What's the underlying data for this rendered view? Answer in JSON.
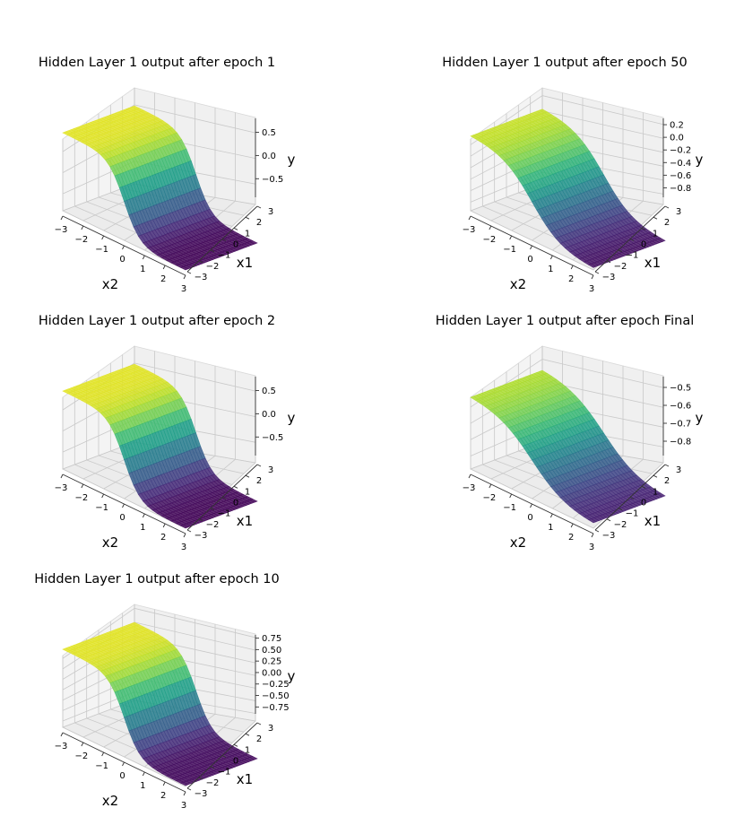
{
  "chart_data": [
    {
      "type": "surface3d",
      "title": "Hidden Layer 1 output after epoch 1",
      "xlabel": "x2",
      "ylabel": "x1",
      "zlabel": "y",
      "xlim": [
        -3,
        3
      ],
      "ylim": [
        -3,
        3
      ],
      "zlim": [
        -0.9,
        0.8
      ],
      "xticks": [
        "−3",
        "−2",
        "−1",
        "0",
        "1",
        "2",
        "3"
      ],
      "yticks": [
        "−3",
        "−2",
        "−1",
        "0",
        "1",
        "2",
        "3"
      ],
      "zticks": [
        {
          "value": 0.5,
          "label": "0.5"
        },
        {
          "value": 0.0,
          "label": "0.0"
        },
        {
          "value": -0.5,
          "label": "−0.5"
        }
      ],
      "grid": true,
      "colormap": "viridis",
      "surface": {
        "at_x_min": 0.78,
        "at_x_max": -0.9,
        "steepness": 1.3
      }
    },
    {
      "type": "surface3d",
      "title": "Hidden Layer 1 output after epoch 50",
      "xlabel": "x2",
      "ylabel": "x1",
      "zlabel": "y",
      "xlim": [
        -3,
        3
      ],
      "ylim": [
        -3,
        3
      ],
      "zlim": [
        -0.95,
        0.3
      ],
      "xticks": [
        "−3",
        "−2",
        "−1",
        "0",
        "1",
        "2",
        "3"
      ],
      "yticks": [
        "−3",
        "−2",
        "−1",
        "0",
        "1",
        "2",
        "3"
      ],
      "zticks": [
        {
          "value": 0.2,
          "label": "0.2"
        },
        {
          "value": 0.0,
          "label": "0.0"
        },
        {
          "value": -0.2,
          "label": "−0.2"
        },
        {
          "value": -0.4,
          "label": "−0.4"
        },
        {
          "value": -0.6,
          "label": "−0.6"
        },
        {
          "value": -0.8,
          "label": "−0.8"
        }
      ],
      "grid": true,
      "colormap": "viridis",
      "surface": {
        "at_x_min": 0.25,
        "at_x_max": -0.93,
        "steepness": 0.7
      }
    },
    {
      "type": "surface3d",
      "title": "Hidden Layer 1 output after epoch 2",
      "xlabel": "x2",
      "ylabel": "x1",
      "zlabel": "y",
      "xlim": [
        -3,
        3
      ],
      "ylim": [
        -3,
        3
      ],
      "zlim": [
        -0.9,
        0.8
      ],
      "xticks": [
        "−3",
        "−2",
        "−1",
        "0",
        "1",
        "2",
        "3"
      ],
      "yticks": [
        "−3",
        "−2",
        "−1",
        "0",
        "1",
        "2",
        "3"
      ],
      "zticks": [
        {
          "value": 0.5,
          "label": "0.5"
        },
        {
          "value": 0.0,
          "label": "0.0"
        },
        {
          "value": -0.5,
          "label": "−0.5"
        }
      ],
      "grid": true,
      "colormap": "viridis",
      "surface": {
        "at_x_min": 0.78,
        "at_x_max": -0.9,
        "steepness": 1.3
      }
    },
    {
      "type": "surface3d",
      "title": "Hidden Layer 1 output after epoch Final",
      "xlabel": "x2",
      "ylabel": "x1",
      "zlabel": "y",
      "xlim": [
        -3,
        3
      ],
      "ylim": [
        -3,
        3
      ],
      "zlim": [
        -0.88,
        -0.44
      ],
      "xticks": [
        "−3",
        "−2",
        "−1",
        "0",
        "1",
        "2",
        "3"
      ],
      "yticks": [
        "−3",
        "−2",
        "−1",
        "0",
        "1",
        "2",
        "3"
      ],
      "zticks": [
        {
          "value": -0.5,
          "label": "−0.5"
        },
        {
          "value": -0.6,
          "label": "−0.6"
        },
        {
          "value": -0.7,
          "label": "−0.7"
        },
        {
          "value": -0.8,
          "label": "−0.8"
        }
      ],
      "grid": true,
      "colormap": "viridis",
      "surface": {
        "at_x_min": -0.47,
        "at_x_max": -0.86,
        "steepness": 0.6
      }
    },
    {
      "type": "surface3d",
      "title": "Hidden Layer 1 output after epoch 10",
      "xlabel": "x2",
      "ylabel": "x1",
      "zlabel": "y",
      "xlim": [
        -3,
        3
      ],
      "ylim": [
        -3,
        3
      ],
      "zlim": [
        -0.9,
        0.82
      ],
      "xticks": [
        "−3",
        "−2",
        "−1",
        "0",
        "1",
        "2",
        "3"
      ],
      "yticks": [
        "−3",
        "−2",
        "−1",
        "0",
        "1",
        "2",
        "3"
      ],
      "zticks": [
        {
          "value": 0.75,
          "label": "0.75"
        },
        {
          "value": 0.5,
          "label": "0.50"
        },
        {
          "value": 0.25,
          "label": "0.25"
        },
        {
          "value": 0.0,
          "label": "0.00"
        },
        {
          "value": -0.25,
          "label": "−0.25"
        },
        {
          "value": -0.5,
          "label": "−0.50"
        },
        {
          "value": -0.75,
          "label": "−0.75"
        }
      ],
      "grid": true,
      "colormap": "viridis",
      "surface": {
        "at_x_min": 0.8,
        "at_x_max": -0.88,
        "steepness": 1.3
      }
    }
  ]
}
